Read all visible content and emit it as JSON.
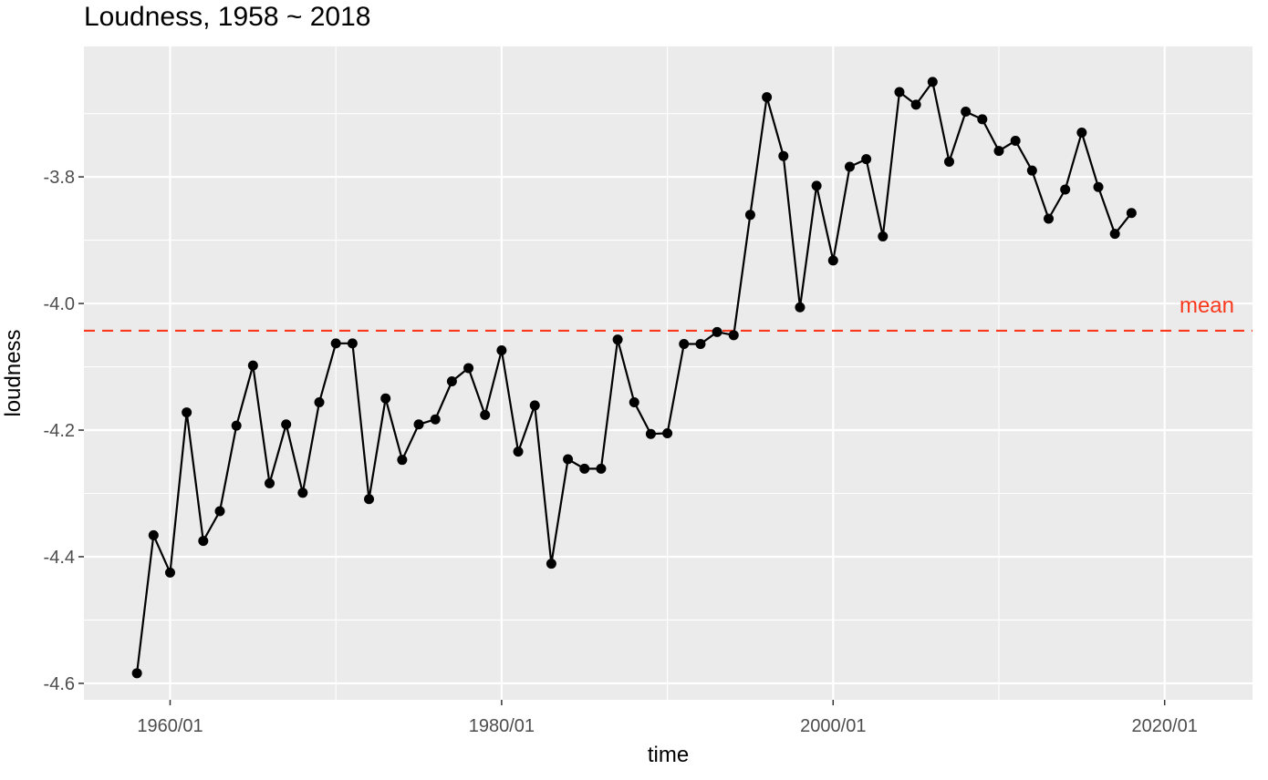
{
  "chart_data": {
    "type": "line",
    "title": "Loudness, 1958 ~ 2018",
    "xlabel": "time",
    "ylabel": "loudness",
    "x_ticks": [
      {
        "year": 1960,
        "label": "1960/01"
      },
      {
        "year": 1980,
        "label": "1980/01"
      },
      {
        "year": 2000,
        "label": "2000/01"
      },
      {
        "year": 2020,
        "label": "2020/01"
      }
    ],
    "y_ticks": [
      {
        "value": -3.8,
        "label": "-3.8"
      },
      {
        "value": -4.0,
        "label": "-4.0"
      },
      {
        "value": -4.2,
        "label": "-4.2"
      },
      {
        "value": -4.4,
        "label": "-4.4"
      },
      {
        "value": -4.6,
        "label": "-4.6"
      }
    ],
    "xlim": [
      1954.8,
      2025.3
    ],
    "ylim": [
      -4.626,
      -3.594
    ],
    "grid": true,
    "series": [
      {
        "x": [
          1958,
          1959,
          1960,
          1961,
          1962,
          1963,
          1964,
          1965,
          1966,
          1967,
          1968,
          1969,
          1970,
          1971,
          1972,
          1973,
          1974,
          1975,
          1976,
          1977,
          1978,
          1979,
          1980,
          1981,
          1982,
          1983,
          1984,
          1985,
          1986,
          1987,
          1988,
          1989,
          1990,
          1991,
          1992,
          1993,
          1994,
          1995,
          1996,
          1997,
          1998,
          1999,
          2000,
          2001,
          2002,
          2003,
          2004,
          2005,
          2006,
          2007,
          2008,
          2009,
          2010,
          2011,
          2012,
          2013,
          2014,
          2015,
          2016,
          2017,
          2018
        ],
        "y": [
          -4.584,
          -4.366,
          -4.425,
          -4.172,
          -4.375,
          -4.328,
          -4.193,
          -4.098,
          -4.284,
          -4.191,
          -4.299,
          -4.156,
          -4.063,
          -4.063,
          -4.309,
          -4.15,
          -4.247,
          -4.191,
          -4.183,
          -4.123,
          -4.102,
          -4.176,
          -4.074,
          -4.234,
          -4.161,
          -4.411,
          -4.246,
          -4.261,
          -4.261,
          -4.057,
          -4.156,
          -4.206,
          -4.205,
          -4.064,
          -4.064,
          -4.045,
          -4.05,
          -3.86,
          -3.674,
          -3.767,
          -4.006,
          -3.814,
          -3.932,
          -3.784,
          -3.772,
          -3.894,
          -3.666,
          -3.686,
          -3.65,
          -3.776,
          -3.697,
          -3.709,
          -3.759,
          -3.743,
          -3.79,
          -3.866,
          -3.82,
          -3.73,
          -3.816,
          -3.89,
          -3.857
        ],
        "color": "#000000"
      }
    ],
    "reference_line": {
      "value": -4.043,
      "label": "mean",
      "color": "#F8391E",
      "style": "dashed"
    }
  }
}
